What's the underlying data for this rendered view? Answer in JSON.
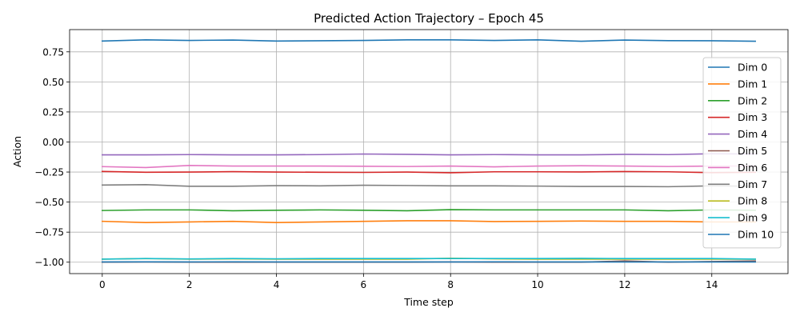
{
  "chart_data": {
    "type": "line",
    "title": "Predicted Action Trajectory – Epoch 45",
    "xlabel": "Time step",
    "ylabel": "Action",
    "xlim": [
      -0.75,
      15.75
    ],
    "ylim": [
      -1.095,
      0.935
    ],
    "xticks": [
      0,
      2,
      4,
      6,
      8,
      10,
      12,
      14
    ],
    "xtick_labels": [
      "0",
      "2",
      "4",
      "6",
      "8",
      "10",
      "12",
      "14"
    ],
    "yticks": [
      0.75,
      0.5,
      0.25,
      0.0,
      -0.25,
      -0.5,
      -0.75,
      -1.0
    ],
    "ytick_labels": [
      "0.75",
      "0.50",
      "0.25",
      "0.00",
      "−0.25",
      "−0.50",
      "−0.75",
      "−1.00"
    ],
    "grid": true,
    "legend_position": "right",
    "x": [
      0,
      1,
      2,
      3,
      4,
      5,
      6,
      7,
      8,
      9,
      10,
      11,
      12,
      13,
      14,
      15
    ],
    "series": [
      {
        "name": "Dim 0",
        "color": "#1f77b4",
        "values": [
          0.84,
          0.85,
          0.845,
          0.848,
          0.84,
          0.842,
          0.845,
          0.85,
          0.85,
          0.845,
          0.85,
          0.838,
          0.848,
          0.843,
          0.842,
          0.838
        ]
      },
      {
        "name": "Dim 1",
        "color": "#ff7f0e",
        "values": [
          -0.66,
          -0.67,
          -0.665,
          -0.66,
          -0.67,
          -0.665,
          -0.66,
          -0.655,
          -0.655,
          -0.662,
          -0.66,
          -0.658,
          -0.66,
          -0.66,
          -0.665,
          -0.665
        ]
      },
      {
        "name": "Dim 2",
        "color": "#2ca02c",
        "values": [
          -0.57,
          -0.565,
          -0.565,
          -0.572,
          -0.568,
          -0.565,
          -0.568,
          -0.572,
          -0.563,
          -0.565,
          -0.565,
          -0.565,
          -0.565,
          -0.572,
          -0.565,
          -0.568
        ]
      },
      {
        "name": "Dim 3",
        "color": "#d62728",
        "values": [
          -0.245,
          -0.252,
          -0.25,
          -0.247,
          -0.25,
          -0.252,
          -0.253,
          -0.25,
          -0.256,
          -0.248,
          -0.248,
          -0.249,
          -0.246,
          -0.248,
          -0.255,
          -0.252
        ]
      },
      {
        "name": "Dim 4",
        "color": "#9467bd",
        "values": [
          -0.107,
          -0.107,
          -0.105,
          -0.107,
          -0.107,
          -0.105,
          -0.1,
          -0.103,
          -0.107,
          -0.105,
          -0.107,
          -0.107,
          -0.103,
          -0.105,
          -0.098,
          -0.1
        ]
      },
      {
        "name": "Dim 5",
        "color": "#8c564b",
        "values": [
          -1.0,
          -0.998,
          -1.0,
          -1.0,
          -1.0,
          -1.0,
          -1.0,
          -1.0,
          -0.998,
          -1.0,
          -1.0,
          -1.0,
          -0.99,
          -1.0,
          -0.995,
          -0.99
        ]
      },
      {
        "name": "Dim 6",
        "color": "#e377c2",
        "values": [
          -0.205,
          -0.213,
          -0.195,
          -0.2,
          -0.2,
          -0.2,
          -0.202,
          -0.204,
          -0.2,
          -0.207,
          -0.2,
          -0.198,
          -0.2,
          -0.204,
          -0.2,
          -0.2
        ]
      },
      {
        "name": "Dim 7",
        "color": "#7f7f7f",
        "values": [
          -0.358,
          -0.355,
          -0.368,
          -0.368,
          -0.363,
          -0.365,
          -0.36,
          -0.362,
          -0.365,
          -0.365,
          -0.367,
          -0.37,
          -0.37,
          -0.372,
          -0.365,
          -0.368
        ]
      },
      {
        "name": "Dim 8",
        "color": "#bcbd22",
        "values": [
          -0.975,
          -0.97,
          -0.975,
          -0.972,
          -0.975,
          -0.975,
          -0.975,
          -0.975,
          -0.967,
          -0.972,
          -0.975,
          -0.975,
          -0.975,
          -0.975,
          -0.975,
          -0.975
        ]
      },
      {
        "name": "Dim 9",
        "color": "#17becf",
        "values": [
          -0.975,
          -0.97,
          -0.973,
          -0.97,
          -0.972,
          -0.97,
          -0.97,
          -0.97,
          -0.97,
          -0.97,
          -0.97,
          -0.968,
          -0.97,
          -0.97,
          -0.97,
          -0.975
        ]
      },
      {
        "name": "Dim 10",
        "color": "#1f77b4",
        "values": [
          -0.998,
          -0.997,
          -0.998,
          -0.997,
          -0.998,
          -0.998,
          -0.998,
          -0.998,
          -0.998,
          -0.997,
          -0.998,
          -0.998,
          -0.998,
          -0.998,
          -0.998,
          -0.998
        ]
      }
    ]
  }
}
